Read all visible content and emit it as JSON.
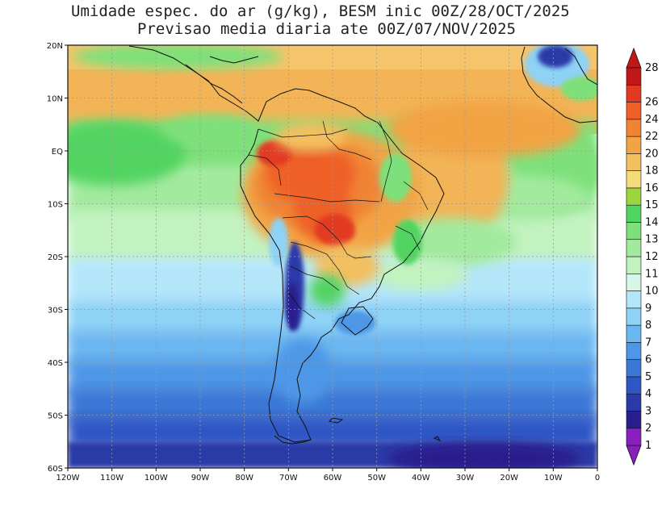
{
  "title_line1": "Umidade espec. do ar (g/kg), BESM inic 00Z/28/OCT/2025",
  "title_line2": "Previsao media diaria ate 00Z/07/NOV/2025",
  "lat_labels": [
    {
      "deg": 20,
      "text": "20N"
    },
    {
      "deg": 10,
      "text": "10N"
    },
    {
      "deg": 0,
      "text": "EQ"
    },
    {
      "deg": -10,
      "text": "10S"
    },
    {
      "deg": -20,
      "text": "20S"
    },
    {
      "deg": -30,
      "text": "30S"
    },
    {
      "deg": -40,
      "text": "40S"
    },
    {
      "deg": -50,
      "text": "50S"
    },
    {
      "deg": -60,
      "text": "60S"
    }
  ],
  "lon_labels": [
    {
      "deg": -120,
      "text": "120W"
    },
    {
      "deg": -110,
      "text": "110W"
    },
    {
      "deg": -100,
      "text": "100W"
    },
    {
      "deg": -90,
      "text": "90W"
    },
    {
      "deg": -80,
      "text": "80W"
    },
    {
      "deg": -70,
      "text": "70W"
    },
    {
      "deg": -60,
      "text": "60W"
    },
    {
      "deg": -50,
      "text": "50W"
    },
    {
      "deg": -40,
      "text": "40W"
    },
    {
      "deg": -30,
      "text": "30W"
    },
    {
      "deg": -20,
      "text": "20W"
    },
    {
      "deg": -10,
      "text": "10W"
    },
    {
      "deg": 0,
      "text": "0"
    }
  ],
  "colorbar": [
    {
      "label": "1",
      "color": "#8a1fc0"
    },
    {
      "label": "2",
      "color": "#2a1e8c"
    },
    {
      "label": "3",
      "color": "#2a3aa8"
    },
    {
      "label": "4",
      "color": "#2f57c4"
    },
    {
      "label": "5",
      "color": "#3b78d6"
    },
    {
      "label": "6",
      "color": "#4d97e6"
    },
    {
      "label": "7",
      "color": "#6ab6f0"
    },
    {
      "label": "8",
      "color": "#8ed2f6"
    },
    {
      "label": "9",
      "color": "#b4e6fa"
    },
    {
      "label": "10",
      "color": "#d6f6e8"
    },
    {
      "label": "11",
      "color": "#c2f2c0"
    },
    {
      "label": "12",
      "color": "#a2ea9e"
    },
    {
      "label": "13",
      "color": "#7ee07a"
    },
    {
      "label": "14",
      "color": "#52d462"
    },
    {
      "label": "15",
      "color": "#9ed440"
    },
    {
      "label": "16",
      "color": "#f4dc7c"
    },
    {
      "label": "18",
      "color": "#f2c060"
    },
    {
      "label": "20",
      "color": "#f2a444"
    },
    {
      "label": "22",
      "color": "#f08434"
    },
    {
      "label": "24",
      "color": "#ee6028"
    },
    {
      "label": "26",
      "color": "#e23a20"
    },
    {
      "label": "28",
      "color": "#c01818"
    }
  ]
}
